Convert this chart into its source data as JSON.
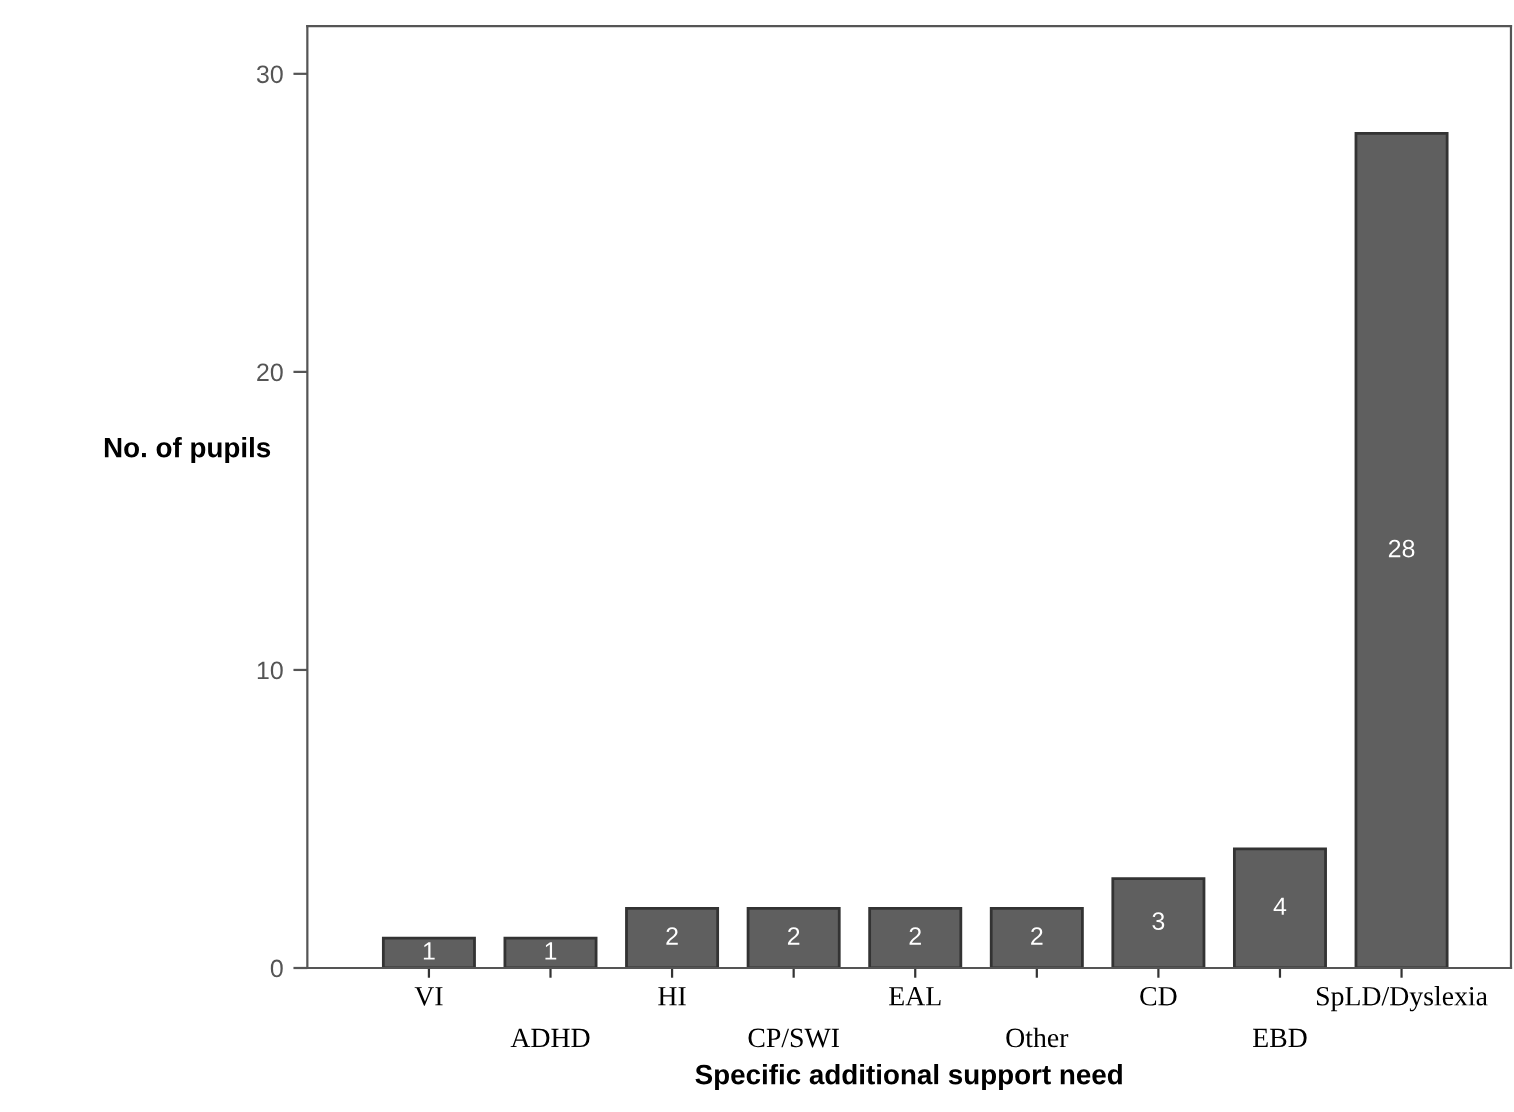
{
  "chart_data": {
    "type": "bar",
    "xlabel": "Specific additional support need",
    "ylabel": "No. of pupils",
    "categories": [
      "VI",
      "ADHD",
      "HI",
      "CP/SWI",
      "EAL",
      "Other",
      "CD",
      "EBD",
      "SpLD/Dyslexia"
    ],
    "values": [
      1,
      1,
      2,
      2,
      2,
      2,
      3,
      4,
      28
    ],
    "color": "#5f5f5f",
    "ylim": [
      0,
      31.6
    ],
    "yticks": [
      0,
      10,
      20,
      30
    ],
    "data_labels": true,
    "grid": false,
    "legend": false
  }
}
